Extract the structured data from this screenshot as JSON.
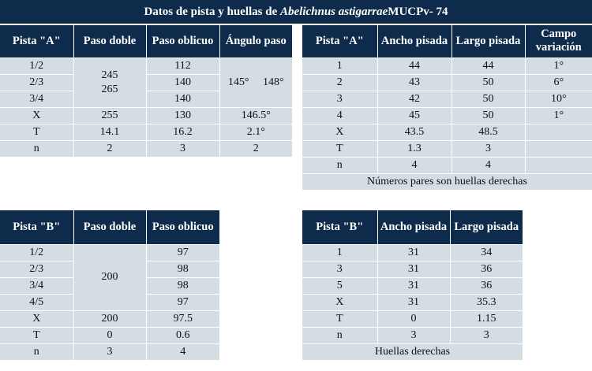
{
  "title": {
    "prefix": "Datos de pista y huellas de",
    "species": "Abelichnus astigarrae",
    "suffix": " MUCPv- 74"
  },
  "tableA_steps": {
    "headers": [
      "Pista \"A\"",
      "Paso doble",
      "Paso oblicuo",
      "Ángulo paso"
    ],
    "rows": [
      {
        "label": "1/2",
        "oblique": "112"
      },
      {
        "label": "2/3",
        "oblique": "140"
      },
      {
        "label": "3/4",
        "oblique": "140"
      }
    ],
    "double_merged": [
      "245",
      "265"
    ],
    "angle_merged": "145°   148°",
    "stats": [
      {
        "label": "X",
        "double": "255",
        "oblique": "130",
        "angle": "146.5°"
      },
      {
        "label": "T",
        "double": "14.1",
        "oblique": "16.2",
        "angle": "2.1°"
      },
      {
        "label": "n",
        "double": "2",
        "oblique": "3",
        "angle": "2"
      }
    ]
  },
  "tableA_prints": {
    "headers": [
      "Pista \"A\"",
      "Ancho pisada",
      "Largo pisada",
      "Campo variación"
    ],
    "rows": [
      {
        "label": "1",
        "width": "44",
        "length": "44",
        "field": "1°"
      },
      {
        "label": "2",
        "width": "43",
        "length": "50",
        "field": "6°"
      },
      {
        "label": "3",
        "width": "42",
        "length": "50",
        "field": "10°"
      },
      {
        "label": "4",
        "width": "45",
        "length": "50",
        "field": "1°"
      },
      {
        "label": "X",
        "width": "43.5",
        "length": "48.5",
        "field": ""
      },
      {
        "label": "T",
        "width": "1.3",
        "length": "3",
        "field": ""
      },
      {
        "label": "n",
        "width": "4",
        "length": "4",
        "field": ""
      }
    ],
    "note": "Números pares son huellas derechas"
  },
  "tableB_steps": {
    "headers": [
      "Pista \"B\"",
      "Paso doble",
      "Paso oblicuo"
    ],
    "rows": [
      {
        "label": "1/2",
        "oblique": "97"
      },
      {
        "label": "2/3",
        "oblique": "98"
      },
      {
        "label": "3/4",
        "oblique": "98"
      },
      {
        "label": "4/5",
        "oblique": "97"
      }
    ],
    "double_merged": "200",
    "stats": [
      {
        "label": "X",
        "double": "200",
        "oblique": "97.5"
      },
      {
        "label": "T",
        "double": "0",
        "oblique": "0.6"
      },
      {
        "label": "n",
        "double": "3",
        "oblique": "4"
      }
    ]
  },
  "tableB_prints": {
    "headers": [
      "Pista \"B\"",
      "Ancho pisada",
      "Largo pisada"
    ],
    "rows": [
      {
        "label": "1",
        "width": "31",
        "length": "34"
      },
      {
        "label": "3",
        "width": "31",
        "length": "36"
      },
      {
        "label": "5",
        "width": "31",
        "length": "36"
      },
      {
        "label": "X",
        "width": "31",
        "length": "35.3"
      },
      {
        "label": "T",
        "width": "0",
        "length": "1.15"
      },
      {
        "label": "n",
        "width": "3",
        "length": "3"
      }
    ],
    "note": "Huellas derechas"
  },
  "colors": {
    "header_bg": "#0f2b4b",
    "cell_bg": "#d3dde3",
    "divider": "#ffffff"
  }
}
